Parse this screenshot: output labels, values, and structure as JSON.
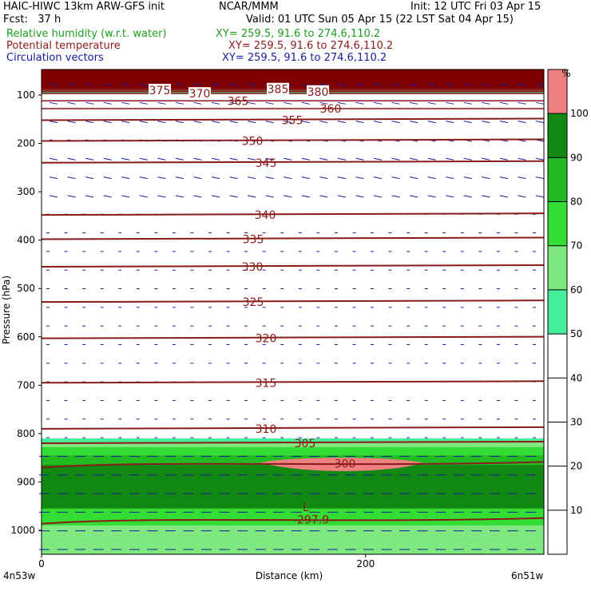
{
  "header": {
    "line1_left": "HAIC-HIWC 13km ARW-GFS init",
    "line1_mid": "NCAR/MMM",
    "line1_right": "Init: 12 UTC Fri 03 Apr 15",
    "line2_left": "Fcst:   37 h",
    "line2_right": "Valid: 01 UTC Sun 05 Apr 15 (22 LST Sat 04 Apr 15)"
  },
  "fields": [
    {
      "name": "Relative humidity (w.r.t. water)",
      "xy": "XY= 259.5, 91.6 to 274.6,110.2",
      "color": "#1e9e1e"
    },
    {
      "name": "Potential temperature",
      "xy": "XY= 259.5, 91.6 to 274.6,110.2",
      "color": "#8b1a1a"
    },
    {
      "name": "Circulation vectors",
      "xy": "XY= 259.5, 91.6 to 274.6,110.2",
      "color": "#1a1aa0"
    }
  ],
  "chart_data": {
    "type": "heatmap",
    "subtype": "vertical cross-section (filled contours + line contours + vectors)",
    "ylabel": "Pressure (hPa)",
    "xlabel": "Distance (km)",
    "y_ticks": [
      100,
      200,
      300,
      400,
      500,
      600,
      700,
      800,
      900,
      1000
    ],
    "y_range_hPa": [
      50,
      1045
    ],
    "x_ticks": [
      0,
      200
    ],
    "x_range_km": [
      0,
      310
    ],
    "x_endpoint_left": "4n53w",
    "x_endpoint_right": "6n51w",
    "colorbar": {
      "unit": "%",
      "tick_labels": [
        10,
        20,
        30,
        40,
        50,
        60,
        70,
        80,
        90,
        100
      ],
      "bins": [
        {
          "from": 0,
          "to": 50,
          "color": "#ffffff"
        },
        {
          "from": 50,
          "to": 60,
          "color": "#44ee99"
        },
        {
          "from": 60,
          "to": 70,
          "color": "#7fe87f"
        },
        {
          "from": 70,
          "to": 80,
          "color": "#33dd33"
        },
        {
          "from": 80,
          "to": 90,
          "color": "#22bb22"
        },
        {
          "from": 90,
          "to": 100,
          "color": "#118811"
        },
        {
          "from": 100,
          "to": 110,
          "color": "#f08080"
        }
      ]
    },
    "theta_contours": [
      {
        "label": "375",
        "p": 90
      },
      {
        "label": "370",
        "p": 97
      },
      {
        "label": "385",
        "p": 88
      },
      {
        "label": "380",
        "p": 93
      },
      {
        "label": "365",
        "p": 112
      },
      {
        "label": "360",
        "p": 128
      },
      {
        "label": "355",
        "p": 152
      },
      {
        "label": "350",
        "p": 195
      },
      {
        "label": "345",
        "p": 240
      },
      {
        "label": "340",
        "p": 348
      },
      {
        "label": "335",
        "p": 398
      },
      {
        "label": "330",
        "p": 455
      },
      {
        "label": "325",
        "p": 528
      },
      {
        "label": "320",
        "p": 603
      },
      {
        "label": "315",
        "p": 695
      },
      {
        "label": "310",
        "p": 790
      },
      {
        "label": "305",
        "p": 820
      },
      {
        "label": "300",
        "p": 862
      },
      {
        "label": "297.9",
        "p": 978
      }
    ],
    "low_marker": "L",
    "rh_regions": {
      "top_saturated_above_hPa": 100,
      "moist_layer_top_hPa": 810,
      "supersaturated_patch": {
        "x_range_km": [
          135,
          235
        ],
        "p_range_hPa": [
          850,
          880
        ]
      }
    }
  }
}
